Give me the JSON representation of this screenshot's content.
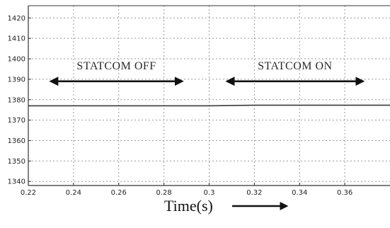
{
  "chart_data": {
    "type": "line",
    "title": "",
    "xlabel": "Time(s)",
    "ylabel": "",
    "xlim": [
      0.22,
      0.38
    ],
    "ylim": [
      1338,
      1426
    ],
    "x_ticks": [
      0.22,
      0.24,
      0.26,
      0.28,
      0.3,
      0.32,
      0.34,
      0.36
    ],
    "x_tick_labels": [
      "0.22",
      "0.24",
      "0.26",
      "0.28",
      "0.3",
      "0.32",
      "0.34",
      "0.36"
    ],
    "y_ticks": [
      1340,
      1350,
      1360,
      1370,
      1380,
      1390,
      1400,
      1410,
      1420
    ],
    "y_tick_labels": [
      "1340",
      "1350",
      "1360",
      "1370",
      "1380",
      "1390",
      "1400",
      "1410",
      "1420"
    ],
    "grid": true,
    "series": [
      {
        "x": [
          0.22,
          0.3,
          0.32,
          0.38
        ],
        "values": [
          1377,
          1377,
          1377.3,
          1377.3
        ]
      }
    ],
    "annotations": [
      {
        "text": "STATCOM OFF",
        "x_from": 0.23,
        "x_to": 0.288,
        "y": 1389
      },
      {
        "text": "STATCOM ON",
        "x_from": 0.308,
        "x_to": 0.368,
        "y": 1389
      }
    ],
    "colors": {
      "line": "#3a3a3a",
      "grid": "#9a9a9a",
      "axis": "#333333",
      "arrow": "#111111"
    }
  }
}
